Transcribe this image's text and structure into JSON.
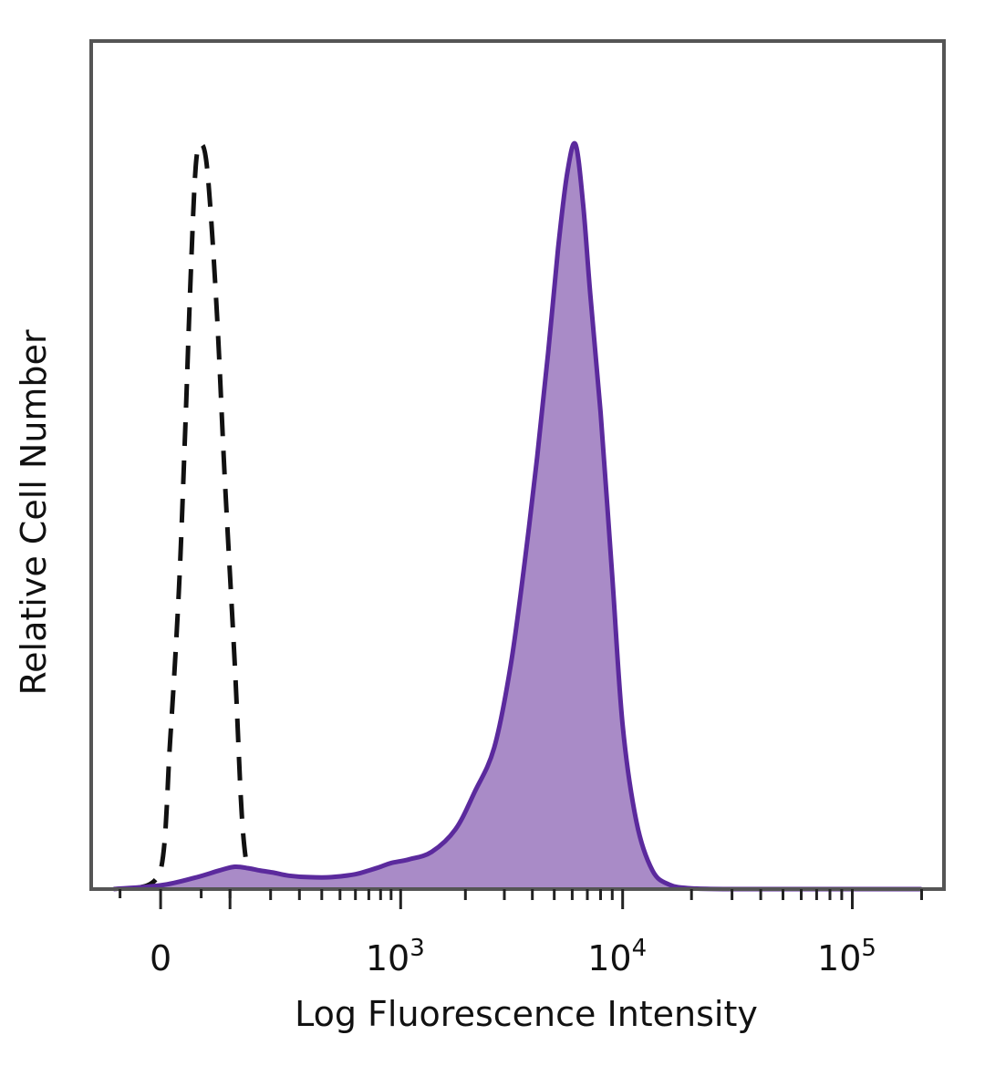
{
  "chart_data": {
    "type": "area",
    "title": "",
    "xlabel": "Log Fluorescence Intensity",
    "ylabel": "Relative Cell Number",
    "x_scale": "biexponential",
    "xlim": [
      -100,
      250000
    ],
    "ylim": [
      0,
      100
    ],
    "x_ticks": [
      {
        "value": 0,
        "base": "0",
        "exp": ""
      },
      {
        "value": 1000,
        "base": "10",
        "exp": "3"
      },
      {
        "value": 10000,
        "base": "10",
        "exp": "4"
      },
      {
        "value": 100000,
        "base": "10",
        "exp": "5"
      }
    ],
    "grid": false,
    "legend": "none",
    "series": [
      {
        "style": "dashed",
        "color": "#111111",
        "fill": "none",
        "x": [
          -30,
          0,
          10,
          20,
          28,
          35,
          42,
          50,
          60,
          75,
          90,
          110,
          125,
          140,
          155,
          180
        ],
        "y": [
          0,
          2.5,
          20,
          40,
          62,
          82,
          97,
          100,
          96,
          78,
          55,
          30,
          10,
          2,
          0.5,
          0
        ]
      },
      {
        "style": "solid",
        "color": "#5b2a9d",
        "fill": "#a98bc7",
        "x": [
          -60,
          0,
          40,
          80,
          110,
          140,
          170,
          210,
          260,
          340,
          450,
          600,
          700,
          800,
          900,
          1100,
          1400,
          1800,
          2200,
          2700,
          3200,
          3700,
          4200,
          4700,
          5200,
          5700,
          6200,
          6700,
          7200,
          8000,
          9000,
          10000,
          11500,
          13500,
          16000,
          20000,
          30000,
          60000,
          120000,
          200000
        ],
        "y": [
          0,
          0.5,
          1.5,
          2.5,
          3,
          2.8,
          2.5,
          2.2,
          1.8,
          1.6,
          1.6,
          2,
          2.5,
          3,
          3.5,
          4,
          5,
          8,
          13,
          19,
          30,
          44,
          58,
          72,
          86,
          96,
          100,
          92,
          80,
          64,
          42,
          22,
          9,
          2.5,
          0.6,
          0.1,
          0,
          0,
          0,
          0
        ]
      }
    ]
  }
}
